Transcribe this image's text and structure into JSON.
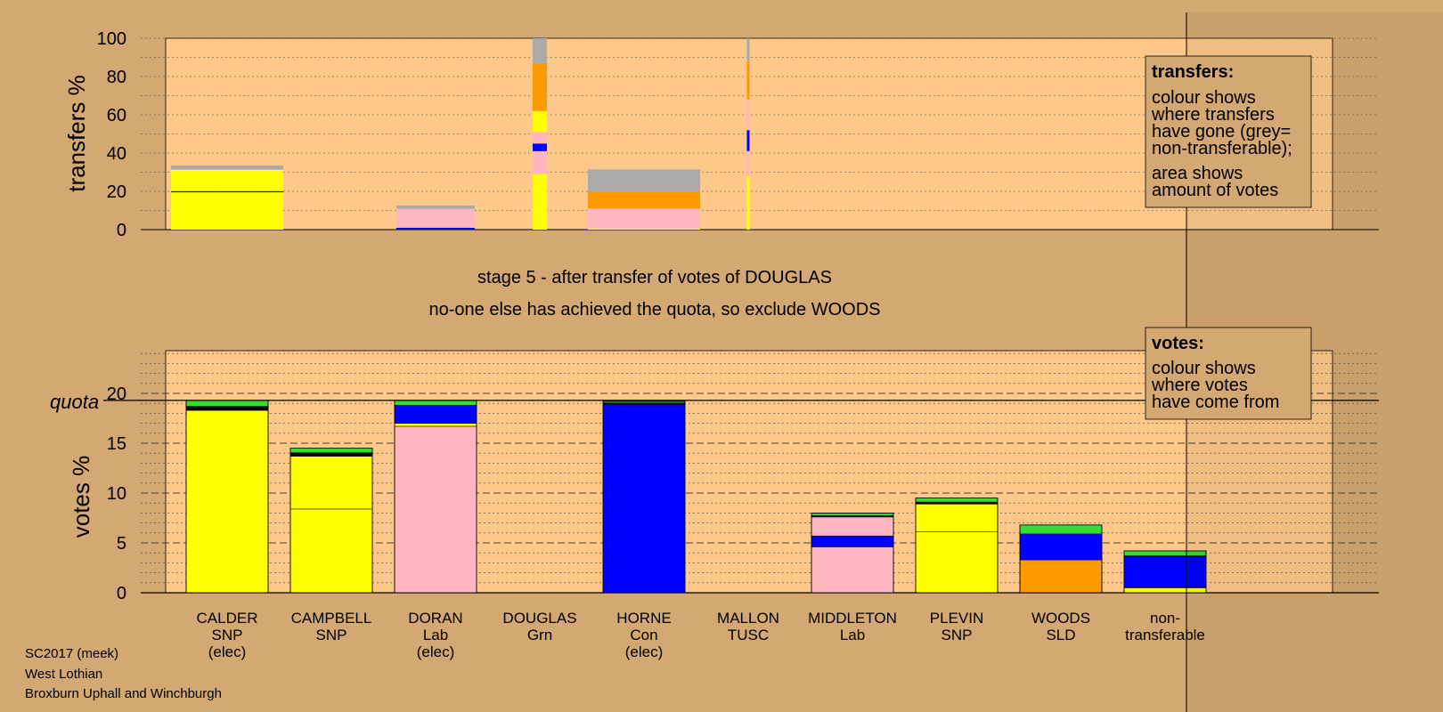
{
  "chart_data": [
    {
      "type": "bar",
      "name": "transfers",
      "ylabel": "transfers %",
      "ylim": [
        0,
        100
      ],
      "yticks": [
        0,
        20,
        40,
        60,
        80,
        100
      ],
      "bars": [
        {
          "x": 1,
          "segments": [
            {
              "color": "#ffff00",
              "value": 19.5
            },
            {
              "color": "#0000ff",
              "value": 0.6
            },
            {
              "color": "#ffff00",
              "value": 10.9
            },
            {
              "color": "#ffffff",
              "value": 0.3
            },
            {
              "color": "#aaaaaa",
              "value": 2.2
            }
          ]
        },
        {
          "x": 3,
          "segments": [
            {
              "color": "#0000ff",
              "value": 1.0
            },
            {
              "color": "#ffb6c1",
              "value": 9.8
            },
            {
              "color": "#aaaaaa",
              "value": 1.8
            }
          ]
        },
        {
          "x": 4,
          "segments": [
            {
              "color": "#ffff00",
              "value": 29
            },
            {
              "color": "#ffb6c1",
              "value": 12
            },
            {
              "color": "#0000ff",
              "value": 4
            },
            {
              "color": "#ffb6c1",
              "value": 6
            },
            {
              "color": "#ffff00",
              "value": 11
            },
            {
              "color": "#ff9900",
              "value": 25
            },
            {
              "color": "#aaaaaa",
              "value": 13
            }
          ]
        },
        {
          "x": 5,
          "segments": [
            {
              "color": "#ffff00",
              "value": 0.6
            },
            {
              "color": "#ffb6c1",
              "value": 10.4
            },
            {
              "color": "#ff9900",
              "value": 9
            },
            {
              "color": "#aaaaaa",
              "value": 11.5
            }
          ]
        },
        {
          "x": 6,
          "segments": [
            {
              "color": "#ffff00",
              "value": 28
            },
            {
              "color": "#ffb6c1",
              "value": 13
            },
            {
              "color": "#0000ff",
              "value": 11
            },
            {
              "color": "#ffb6c1",
              "value": 16
            },
            {
              "color": "#ff9900",
              "value": 20
            },
            {
              "color": "#aaaaaa",
              "value": 12
            }
          ]
        }
      ]
    },
    {
      "type": "bar",
      "name": "votes",
      "ylabel": "votes %",
      "ylim": [
        0,
        24
      ],
      "yticks": [
        0,
        5,
        10,
        15,
        20
      ],
      "quota": 19.3,
      "categories": [
        {
          "name": "CALDER",
          "party": "SNP",
          "status": "(elec)"
        },
        {
          "name": "CAMPBELL",
          "party": "SNP",
          "status": ""
        },
        {
          "name": "DORAN",
          "party": "Lab",
          "status": "(elec)"
        },
        {
          "name": "DOUGLAS",
          "party": "Grn",
          "status": ""
        },
        {
          "name": "HORNE",
          "party": "Con",
          "status": "(elec)"
        },
        {
          "name": "MALLON",
          "party": "TUSC",
          "status": ""
        },
        {
          "name": "MIDDLETON",
          "party": "Lab",
          "status": ""
        },
        {
          "name": "PLEVIN",
          "party": "SNP",
          "status": ""
        },
        {
          "name": "WOODS",
          "party": "SLD",
          "status": ""
        },
        {
          "name": "non-",
          "party": "transferable",
          "status": ""
        }
      ],
      "stacks": [
        {
          "x": 1,
          "segments": [
            {
              "color": "#ffff00",
              "value": 18.3
            },
            {
              "color": "#000000",
              "value": 0.3
            },
            {
              "color": "#0000ff",
              "value": 0.1
            },
            {
              "color": "#33dd33",
              "value": 0.6
            }
          ]
        },
        {
          "x": 2,
          "segments": [
            {
              "color": "#ffff00",
              "value": 8.4
            },
            {
              "color": "#ffff00",
              "value": 5.3
            },
            {
              "color": "#000000",
              "value": 0.3
            },
            {
              "color": "#0000ff",
              "value": 0.05
            },
            {
              "color": "#33dd33",
              "value": 0.45
            }
          ]
        },
        {
          "x": 3,
          "segments": [
            {
              "color": "#ffb6c1",
              "value": 16.7
            },
            {
              "color": "#ffff00",
              "value": 0.3
            },
            {
              "color": "#0000ff",
              "value": 1.8
            },
            {
              "color": "#33dd33",
              "value": 0.5
            }
          ]
        },
        {
          "x": 5,
          "segments": [
            {
              "color": "#0000ff",
              "value": 18.9
            },
            {
              "color": "#000000",
              "value": 0.15
            },
            {
              "color": "#33dd33",
              "value": 0.15
            }
          ]
        },
        {
          "x": 7,
          "segments": [
            {
              "color": "#ffb6c1",
              "value": 4.6
            },
            {
              "color": "#0000ff",
              "value": 1.1
            },
            {
              "color": "#ffb6c1",
              "value": 1.9
            },
            {
              "color": "#ffff00",
              "value": 0.05
            },
            {
              "color": "#000000",
              "value": 0.1
            },
            {
              "color": "#33dd33",
              "value": 0.25
            }
          ]
        },
        {
          "x": 8,
          "segments": [
            {
              "color": "#ffff00",
              "value": 6.1
            },
            {
              "color": "#ffff00",
              "value": 2.8
            },
            {
              "color": "#000000",
              "value": 0.2
            },
            {
              "color": "#33dd33",
              "value": 0.4
            }
          ]
        },
        {
          "x": 9,
          "segments": [
            {
              "color": "#ff9900",
              "value": 3.3
            },
            {
              "color": "#0000ff",
              "value": 2.6
            },
            {
              "color": "#33dd33",
              "value": 0.9
            }
          ]
        },
        {
          "x": 10,
          "segments": [
            {
              "color": "#ffff00",
              "value": 0.5
            },
            {
              "color": "#000000",
              "value": 0.1
            },
            {
              "color": "#0000ff",
              "value": 3.0
            },
            {
              "color": "#000000",
              "value": 0.1
            },
            {
              "color": "#33dd33",
              "value": 0.5
            }
          ]
        }
      ]
    }
  ],
  "stage_text": "stage 5 - after transfer of votes of DOUGLAS",
  "action_text": "no-one else has achieved the quota, so exclude WOODS",
  "quota_label": "quota",
  "legend_transfers": {
    "title": "transfers:",
    "lines1": [
      "colour shows",
      "where transfers",
      "have gone (grey=",
      "non-transferable);"
    ],
    "lines2": [
      "area shows",
      "amount of votes"
    ]
  },
  "legend_votes": {
    "title": "votes:",
    "lines": [
      "colour shows",
      "where votes",
      "have come from"
    ]
  },
  "footer": [
    "SC2017 (meek)",
    "West Lothian",
    "Broxburn Uphall and Winchburgh"
  ],
  "colors": {
    "background": "#d4a872",
    "plot": "#fdc88a",
    "legend_bg": "#d4a872"
  }
}
